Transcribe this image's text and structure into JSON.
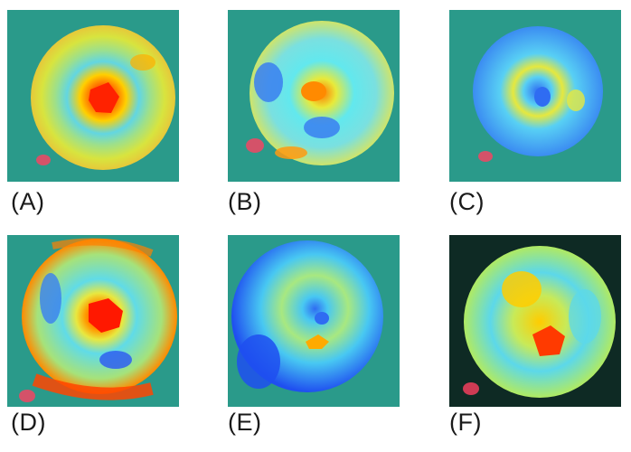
{
  "panels": [
    {
      "label": "(A)",
      "background": "#2a9a8a",
      "base": "#d4e84a",
      "hotspot": "#ff2200",
      "mid": "#ffaa00",
      "cool": "#5fd0e8"
    },
    {
      "label": "(B)",
      "background": "#2a9a8a",
      "base": "#5ee6f0",
      "hotspot": "#ff7700",
      "mid": "#e8ea3a",
      "cool": "#3a7ff0"
    },
    {
      "label": "(C)",
      "background": "#2a9a8a",
      "base": "#58d0f4",
      "hotspot": "#2f6cf2",
      "mid": "#e6e83e",
      "cool": "#2f6cf2"
    },
    {
      "label": "(D)",
      "background": "#2a9a8a",
      "base": "#60dbe8",
      "hotspot": "#ff2500",
      "mid": "#ff9a00",
      "cool": "#3a7ff0"
    },
    {
      "label": "(E)",
      "background": "#2a9a8a",
      "base": "#48c8f2",
      "hotspot": "#ffaa00",
      "mid": "#e8e840",
      "cool": "#1f4ff0"
    },
    {
      "label": "(F)",
      "background": "#0e2a24",
      "base": "#b0ea62",
      "hotspot": "#ff3a00",
      "mid": "#ffcc00",
      "cool": "#5cd8ea"
    }
  ]
}
